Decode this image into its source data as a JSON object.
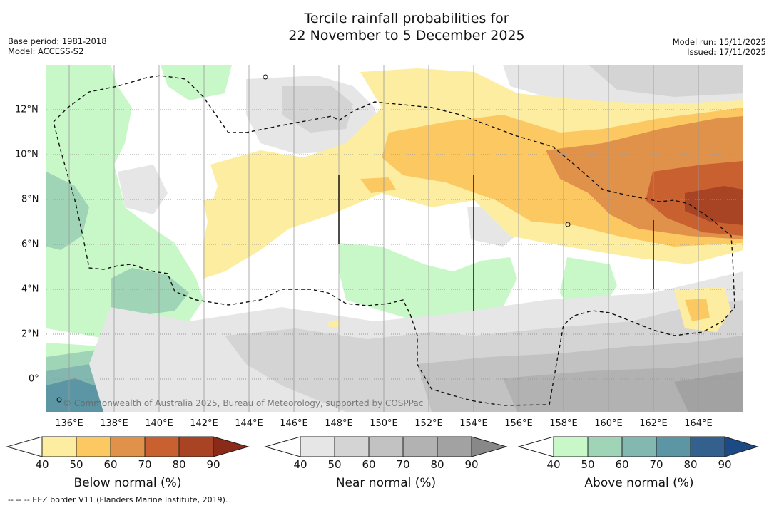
{
  "title": {
    "line1": "Tercile rainfall probabilities for",
    "line2": "22 November to 5 December 2025"
  },
  "meta": {
    "base_period": "Base period: 1981-2018",
    "model": "Model: ACCESS-S2",
    "model_run": "Model run: 15/11/2025",
    "issued": "Issued: 17/11/2025"
  },
  "map": {
    "credit": "© Commonwealth of Australia 2025, Bureau of Meteorology, supported by COSPPac",
    "lon_labels": [
      "136°E",
      "138°E",
      "140°E",
      "142°E",
      "144°E",
      "146°E",
      "148°E",
      "150°E",
      "152°E",
      "154°E",
      "156°E",
      "158°E",
      "160°E",
      "162°E",
      "164°E"
    ],
    "lat_labels": [
      "12°N",
      "10°N",
      "8°N",
      "6°N",
      "4°N",
      "2°N",
      "0°"
    ],
    "colors": {
      "below": [
        "#fdeda0",
        "#fcc862",
        "#e0914a",
        "#c96030",
        "#a84424",
        "#8a2a18"
      ],
      "near": [
        "#e6e6e6",
        "#d4d4d4",
        "#c2c2c2",
        "#b2b2b2",
        "#a2a2a2",
        "#888888"
      ],
      "above": [
        "#c8f7c8",
        "#a0d4b6",
        "#82b8b0",
        "#5c96a4",
        "#34608e",
        "#1b4a84"
      ]
    }
  },
  "legends": {
    "ticks": [
      "40",
      "50",
      "60",
      "70",
      "80",
      "90"
    ],
    "below_title": "Below normal (%)",
    "near_title": "Near normal (%)",
    "above_title": "Above normal (%)"
  },
  "footnote": "--  --  -- EEZ border V11 (Flanders Marine Institute, 2019)."
}
